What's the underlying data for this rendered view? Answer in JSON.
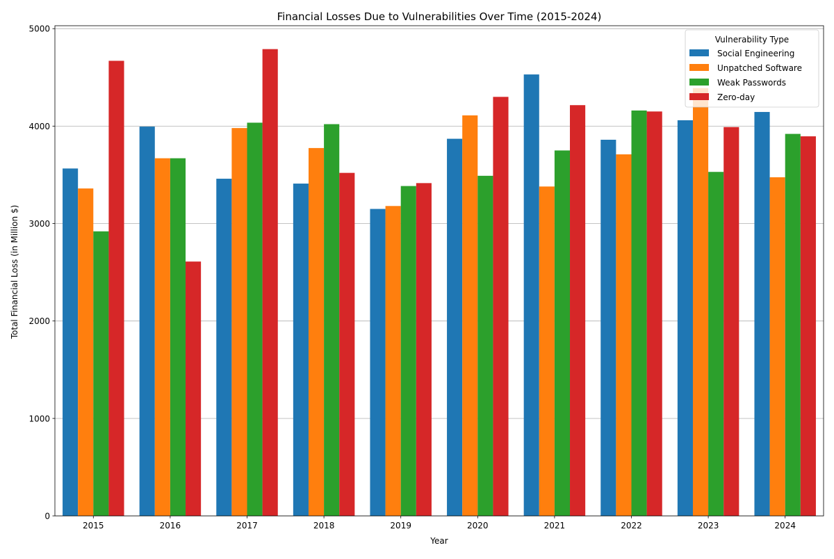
{
  "chart_data": {
    "type": "bar",
    "title": "Financial Losses Due to Vulnerabilities Over Time (2015-2024)",
    "xlabel": "Year",
    "ylabel": "Total Financial Loss (in Million $)",
    "categories": [
      "2015",
      "2016",
      "2017",
      "2018",
      "2019",
      "2020",
      "2021",
      "2022",
      "2023",
      "2024"
    ],
    "ylim": [
      0,
      5030
    ],
    "yticks": [
      0,
      1000,
      2000,
      3000,
      4000,
      5000
    ],
    "grid": "horizontal",
    "legend": {
      "title": "Vulnerability Type",
      "placement": "top-right"
    },
    "series": [
      {
        "name": "Social Engineering",
        "color": "#1f77b4",
        "values": [
          3565,
          3995,
          3460,
          3410,
          3150,
          3870,
          4530,
          3860,
          4060,
          4145
        ]
      },
      {
        "name": "Unpatched Software",
        "color": "#ff7f0e",
        "values": [
          3360,
          3670,
          3980,
          3775,
          3180,
          4110,
          3380,
          3710,
          4390,
          3475
        ]
      },
      {
        "name": "Weak Passwords",
        "color": "#2ca02c",
        "values": [
          2920,
          3670,
          4035,
          4020,
          3385,
          3490,
          3750,
          4160,
          3530,
          3920
        ]
      },
      {
        "name": "Zero-day",
        "color": "#d62728",
        "values": [
          4670,
          2610,
          4790,
          3520,
          3415,
          4300,
          4215,
          4150,
          3990,
          3895
        ]
      }
    ]
  }
}
